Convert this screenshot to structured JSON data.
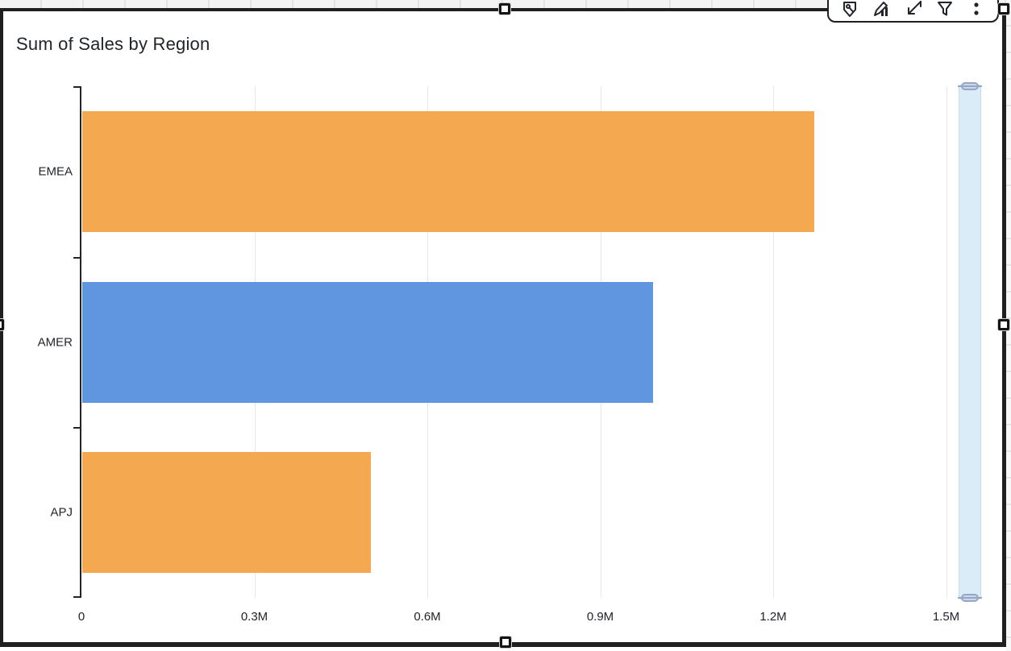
{
  "widget": {
    "title": "Sum of Sales by Region"
  },
  "toolbar": {
    "items": [
      {
        "name": "alert",
        "label": "Alerts"
      },
      {
        "name": "edit-visual",
        "label": "Edit visual"
      },
      {
        "name": "maximize",
        "label": "Maximize"
      },
      {
        "name": "filter",
        "label": "Filter"
      },
      {
        "name": "menu-options",
        "label": "Menu options"
      }
    ]
  },
  "chart_data": {
    "type": "bar",
    "orientation": "horizontal",
    "title": "Sum of Sales by Region",
    "categories": [
      "EMEA",
      "AMER",
      "APJ"
    ],
    "series": [
      {
        "name": "Sum of Sales",
        "values_millions": [
          1.27,
          0.99,
          0.5
        ]
      }
    ],
    "bar_colors": [
      "#f4a950",
      "#6095e0",
      "#f4a950"
    ],
    "x_ticks": [
      {
        "value": 0.0,
        "label": "0"
      },
      {
        "value": 0.3,
        "label": "0.3M"
      },
      {
        "value": 0.6,
        "label": "0.6M"
      },
      {
        "value": 0.9,
        "label": "0.9M"
      },
      {
        "value": 1.2,
        "label": "1.2M"
      },
      {
        "value": 1.5,
        "label": "1.5M"
      }
    ],
    "xlim": [
      0,
      1.6
    ],
    "grid": true,
    "legend": "none",
    "colors": {
      "orange": "#f4a950",
      "blue": "#6095e0",
      "axis": "#21252b",
      "gridline": "#e7e7e7"
    }
  }
}
